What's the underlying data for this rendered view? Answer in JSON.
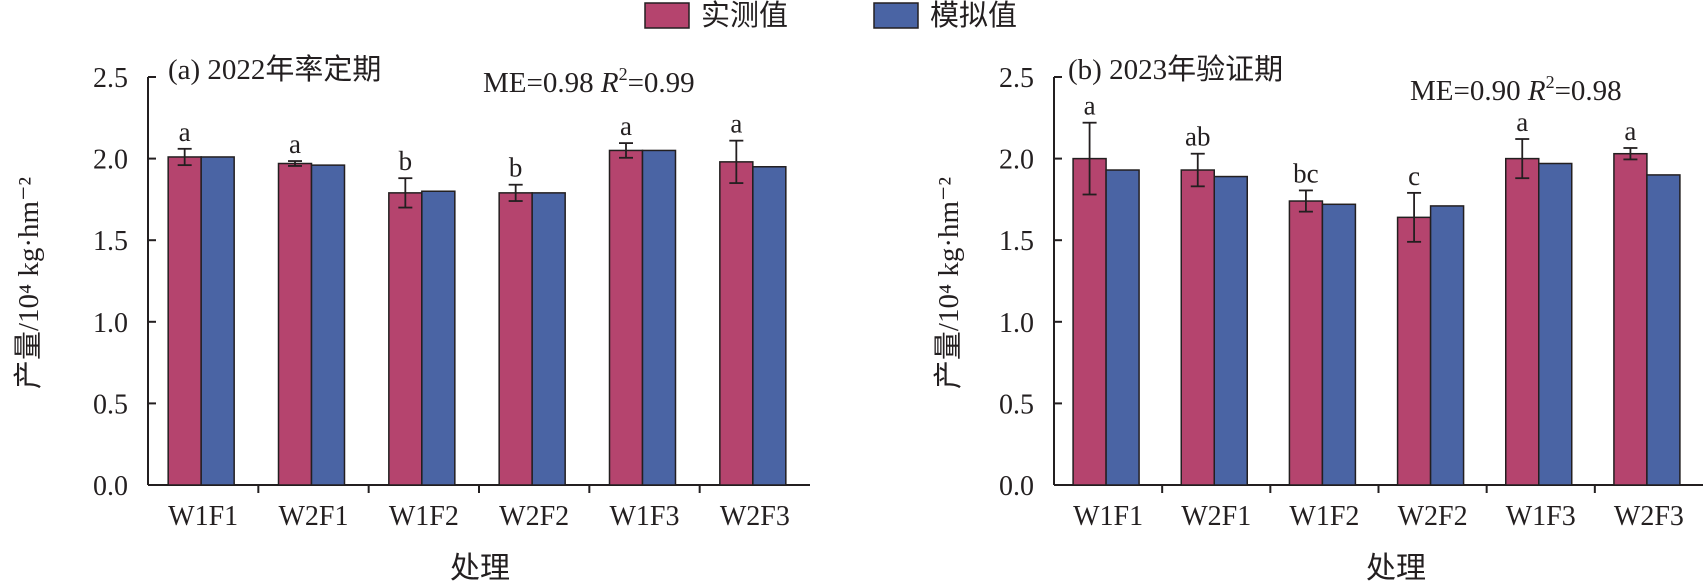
{
  "legend": {
    "items": [
      {
        "label": "实测值",
        "color": "#b5446e"
      },
      {
        "label": "模拟值",
        "color": "#4a64a4"
      }
    ]
  },
  "chart_data": [
    {
      "type": "bar",
      "title": "(a) 2022年率定期",
      "stats": {
        "me": "ME=0.98",
        "r2_label": "R",
        "r2_sup": "2",
        "r2_value": "=0.99"
      },
      "xlabel": "处理",
      "ylabel": "产量/10⁴ kg·hm⁻²",
      "ylim": [
        0,
        2.5
      ],
      "yticks": [
        "0.0",
        "0.5",
        "1.0",
        "1.5",
        "2.0",
        "2.5"
      ],
      "categories": [
        "W1F1",
        "W2F1",
        "W1F2",
        "W2F2",
        "W1F3",
        "W2F3"
      ],
      "series": [
        {
          "name": "实测值",
          "values": [
            2.01,
            1.97,
            1.79,
            1.79,
            2.05,
            1.98
          ],
          "errors": [
            0.05,
            0.015,
            0.09,
            0.05,
            0.045,
            0.13
          ],
          "letters": [
            "a",
            "a",
            "b",
            "b",
            "a",
            "a"
          ]
        },
        {
          "name": "模拟值",
          "values": [
            2.01,
            1.96,
            1.8,
            1.79,
            2.05,
            1.95
          ]
        }
      ]
    },
    {
      "type": "bar",
      "title": "(b) 2023年验证期",
      "stats": {
        "me": "ME=0.90",
        "r2_label": "R",
        "r2_sup": "2",
        "r2_value": "=0.98"
      },
      "xlabel": "处理",
      "ylabel": "产量/10⁴ kg·hm⁻²",
      "ylim": [
        0,
        2.5
      ],
      "yticks": [
        "0.0",
        "0.5",
        "1.0",
        "1.5",
        "2.0",
        "2.5"
      ],
      "categories": [
        "W1F1",
        "W2F1",
        "W1F2",
        "W2F2",
        "W1F3",
        "W2F3"
      ],
      "series": [
        {
          "name": "实测值",
          "values": [
            2.0,
            1.93,
            1.74,
            1.64,
            2.0,
            2.03
          ],
          "errors": [
            0.22,
            0.1,
            0.065,
            0.15,
            0.12,
            0.035
          ],
          "letters": [
            "a",
            "ab",
            "bc",
            "c",
            "a",
            "a"
          ]
        },
        {
          "name": "模拟值",
          "values": [
            1.93,
            1.89,
            1.72,
            1.71,
            1.97,
            1.9
          ]
        }
      ]
    }
  ]
}
